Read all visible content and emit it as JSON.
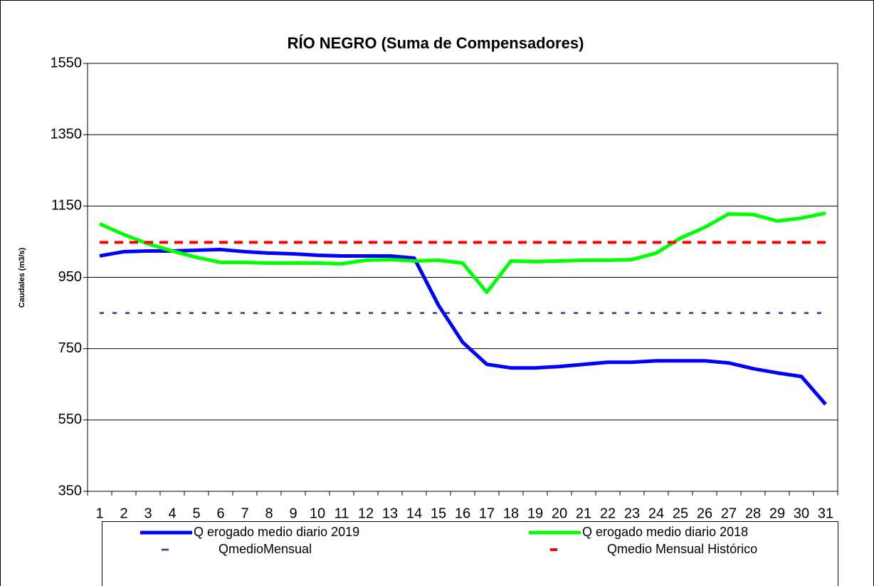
{
  "chart_data": {
    "type": "line",
    "title": "RÍO NEGRO (Suma de Compensadores)",
    "y_label": "Caudales (m3/s)",
    "categories": [
      "1",
      "2",
      "3",
      "4",
      "5",
      "6",
      "7",
      "8",
      "9",
      "10",
      "11",
      "12",
      "13",
      "14",
      "15",
      "16",
      "17",
      "18",
      "19",
      "20",
      "21",
      "22",
      "23",
      "24",
      "25",
      "26",
      "27",
      "28",
      "29",
      "30",
      "31"
    ],
    "ylim": [
      350,
      1550
    ],
    "yticks": [
      350,
      550,
      750,
      950,
      1150,
      1350,
      1550
    ],
    "grid": true,
    "legend": "bottom",
    "series": [
      {
        "name": "Q erogado medio diario 2019",
        "color": "#0000ff",
        "style": "solid",
        "values": [
          1010,
          1022,
          1024,
          1024,
          1026,
          1028,
          1022,
          1018,
          1016,
          1012,
          1010,
          1010,
          1010,
          1004,
          872,
          768,
          706,
          696,
          696,
          700,
          706,
          712,
          712,
          716,
          716,
          716,
          710,
          694,
          682,
          672,
          594
        ]
      },
      {
        "name": "Q erogado medio diario 2018",
        "color": "#00ff00",
        "style": "solid",
        "values": [
          1100,
          1070,
          1044,
          1024,
          1006,
          992,
          992,
          990,
          990,
          990,
          988,
          998,
          1000,
          996,
          998,
          990,
          908,
          996,
          994,
          996,
          998,
          998,
          1000,
          1018,
          1060,
          1090,
          1128,
          1126,
          1108,
          1116,
          1130
        ]
      },
      {
        "name": "QmedioMensual",
        "color": "#333399",
        "style": "dotted",
        "values": [
          850,
          850,
          850,
          850,
          850,
          850,
          850,
          850,
          850,
          850,
          850,
          850,
          850,
          850,
          850,
          850,
          850,
          850,
          850,
          850,
          850,
          850,
          850,
          850,
          850,
          850,
          850,
          850,
          850,
          850,
          850
        ]
      },
      {
        "name": "Qmedio Mensual Histórico",
        "color": "#ff0000",
        "style": "dashed",
        "values": [
          1048,
          1048,
          1048,
          1048,
          1048,
          1048,
          1048,
          1048,
          1048,
          1048,
          1048,
          1048,
          1048,
          1048,
          1048,
          1048,
          1048,
          1048,
          1048,
          1048,
          1048,
          1048,
          1048,
          1048,
          1048,
          1048,
          1048,
          1048,
          1048,
          1048,
          1048
        ]
      }
    ]
  }
}
